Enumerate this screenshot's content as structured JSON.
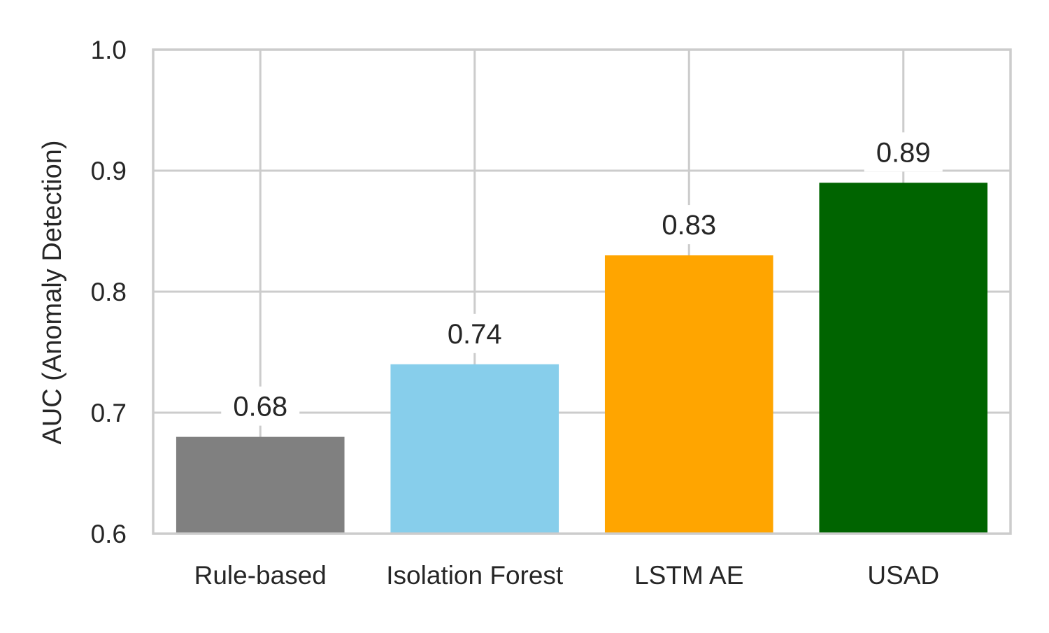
{
  "chart_data": {
    "type": "bar",
    "title": "",
    "xlabel": "",
    "ylabel": "AUC (Anomaly Detection)",
    "categories": [
      "Rule-based",
      "Isolation Forest",
      "LSTM AE",
      "USAD"
    ],
    "values": [
      0.68,
      0.74,
      0.83,
      0.89
    ],
    "data_labels": [
      "0.68",
      "0.74",
      "0.83",
      "0.89"
    ],
    "colors": [
      "#808080",
      "#87CEEB",
      "#FFA500",
      "#006400"
    ],
    "ylim": [
      0.6,
      1.0
    ],
    "yticks": [
      0.6,
      0.7,
      0.8,
      0.9,
      1.0
    ],
    "ytick_labels": [
      "0.6",
      "0.7",
      "0.8",
      "0.9",
      "1.0"
    ],
    "grid": true,
    "grid_color": "#cccccc",
    "axis_color": "#cccccc",
    "text_color": "#262626"
  }
}
